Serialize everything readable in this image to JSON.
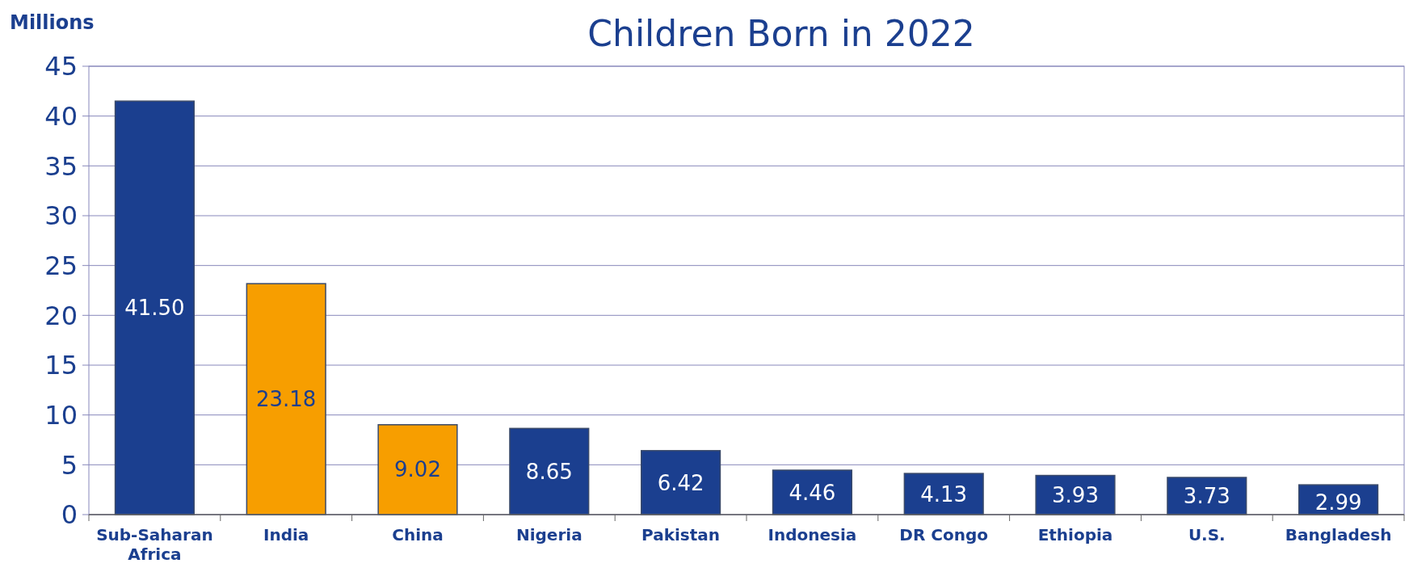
{
  "chart_data": {
    "type": "bar",
    "title": "Children Born in 2022",
    "ylabel": "Millions",
    "categories": [
      "Sub-Saharan Africa",
      "India",
      "China",
      "Nigeria",
      "Pakistan",
      "Indonesia",
      "DR Congo",
      "Ethiopia",
      "U.S.",
      "Bangladesh"
    ],
    "values": [
      41.5,
      23.18,
      9.02,
      8.65,
      6.42,
      4.46,
      4.13,
      3.93,
      3.73,
      2.99
    ],
    "value_labels": [
      "41.50",
      "23.18",
      "9.02",
      "8.65",
      "6.42",
      "4.46",
      "4.13",
      "3.93",
      "3.73",
      "2.99"
    ],
    "colors": [
      "#1b3f8f",
      "#f79e00",
      "#f79e00",
      "#1b3f8f",
      "#1b3f8f",
      "#1b3f8f",
      "#1b3f8f",
      "#1b3f8f",
      "#1b3f8f",
      "#1b3f8f"
    ],
    "ylim": [
      0,
      45
    ],
    "yticks": [
      0,
      5,
      10,
      15,
      20,
      25,
      30,
      35,
      40,
      45
    ],
    "grid": "y"
  }
}
